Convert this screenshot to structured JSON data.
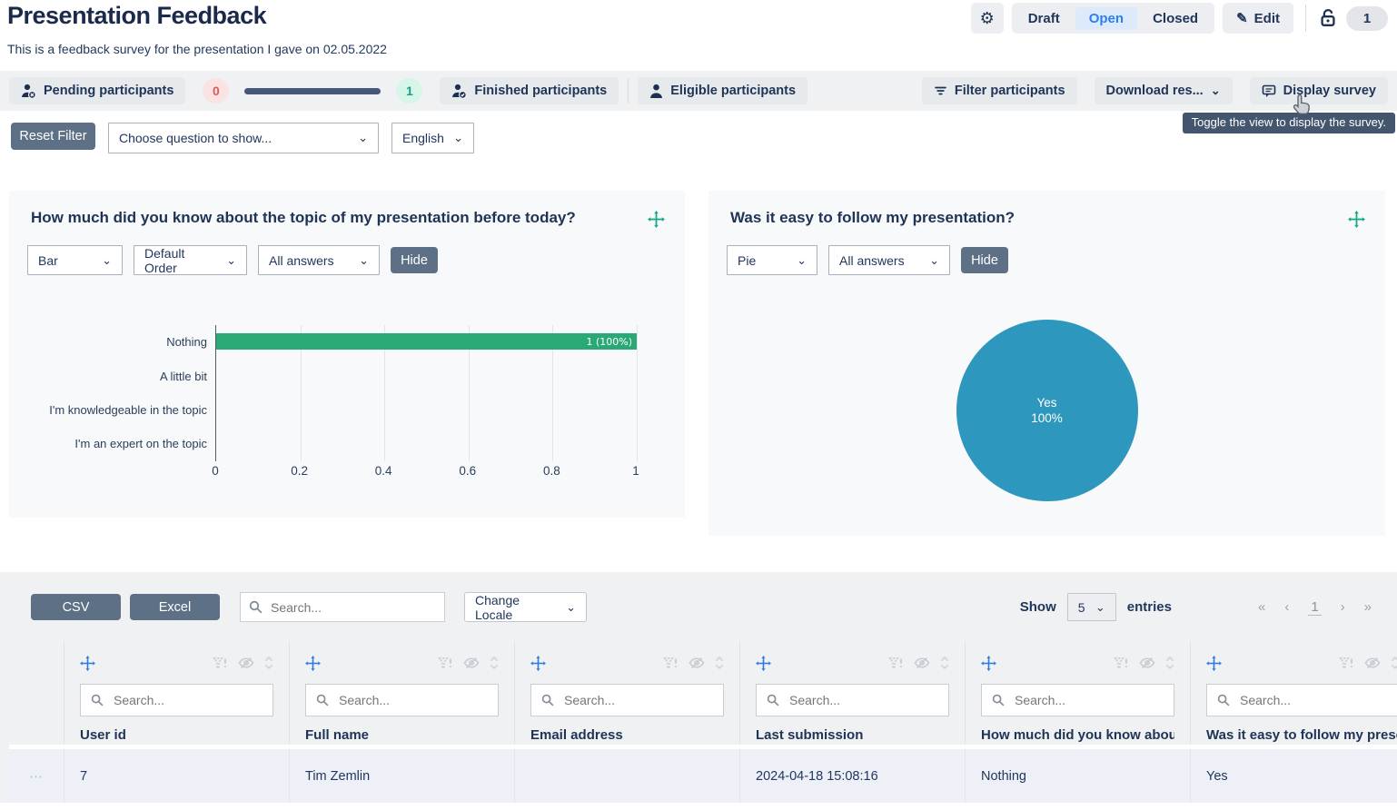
{
  "header": {
    "title": "Presentation Feedback",
    "subtitle": "This is a feedback survey for the presentation I gave on 02.05.2022",
    "status_tabs": {
      "draft": "Draft",
      "open": "Open",
      "closed": "Closed",
      "active": "Open"
    },
    "edit_label": "Edit",
    "count_badge": "1"
  },
  "toolbar": {
    "pending_label": "Pending participants",
    "pending_count": "0",
    "finished_count": "1",
    "finished_label": "Finished participants",
    "eligible_label": "Eligible participants",
    "filter_label": "Filter participants",
    "download_label": "Download res...",
    "display_label": "Display survey",
    "display_tooltip": "Toggle the view to display the survey."
  },
  "filter_bar": {
    "reset_label": "Reset Filter",
    "question_select_value": "Choose question to show...",
    "language_select_value": "English"
  },
  "chart_cards": [
    {
      "title": "How much did you know about the topic of my presentation before today?",
      "type_select": "Bar",
      "order_select": "Default Order",
      "answers_select": "All answers",
      "hide_label": "Hide"
    },
    {
      "title": "Was it easy to follow my presentation?",
      "type_select": "Pie",
      "answers_select": "All answers",
      "hide_label": "Hide"
    }
  ],
  "chart_data": [
    {
      "type": "bar",
      "orientation": "horizontal",
      "title": "How much did you know about the topic of my presentation before today?",
      "categories": [
        "Nothing",
        "A little bit",
        "I'm knowledgeable in the topic",
        "I'm an expert on the topic"
      ],
      "values": [
        1,
        0,
        0,
        0
      ],
      "bar_labels": [
        "1 (100%)",
        "",
        "",
        ""
      ],
      "xlim": [
        0,
        1
      ],
      "xticks": [
        "0",
        "0.2",
        "0.4",
        "0.6",
        "0.8",
        "1"
      ],
      "grid": true,
      "bar_color": "#2aa876"
    },
    {
      "type": "pie",
      "title": "Was it easy to follow my presentation?",
      "labels": [
        "Yes"
      ],
      "values": [
        100
      ],
      "slice_label_lines": [
        "Yes",
        "100%"
      ],
      "colors": [
        "#2e97be"
      ]
    }
  ],
  "table": {
    "csv_label": "CSV",
    "excel_label": "Excel",
    "search_placeholder": "Search...",
    "change_locale_label": "Change Locale",
    "show_label": "Show",
    "page_size": "5",
    "entries_label": "entries",
    "pagination": {
      "first": "«",
      "prev": "‹",
      "page": "1",
      "next": "›",
      "last": "»"
    },
    "column_search_placeholder": "Search...",
    "row_menu_glyph": "⋯",
    "columns": [
      {
        "title": "User id"
      },
      {
        "title": "Full name"
      },
      {
        "title": "Email address"
      },
      {
        "title": "Last submission"
      },
      {
        "title": "How much did you know about the topic of my presentation before today?"
      },
      {
        "title": "Was it easy to follow my presentation?"
      }
    ],
    "rows": [
      [
        "7",
        "Tim Zemlin",
        "",
        "2024-04-18 15:08:16",
        "Nothing",
        "Yes"
      ]
    ]
  },
  "icons": {
    "gear": "⚙",
    "pencil": "✎",
    "chevron_down": "⌄"
  },
  "colors": {
    "bar_green": "#2aa876",
    "pie_teal": "#2e97be",
    "accent_blue": "#2d7ff0",
    "slate_button": "#5d7086",
    "navy_text": "#1e3355",
    "pending_badge_bg": "#fbe3e3",
    "pending_badge_text": "#dd5a5a",
    "finished_badge_bg": "#d7f5e9",
    "finished_badge_text": "#17a384",
    "tooltip_bg": "#44566e"
  }
}
